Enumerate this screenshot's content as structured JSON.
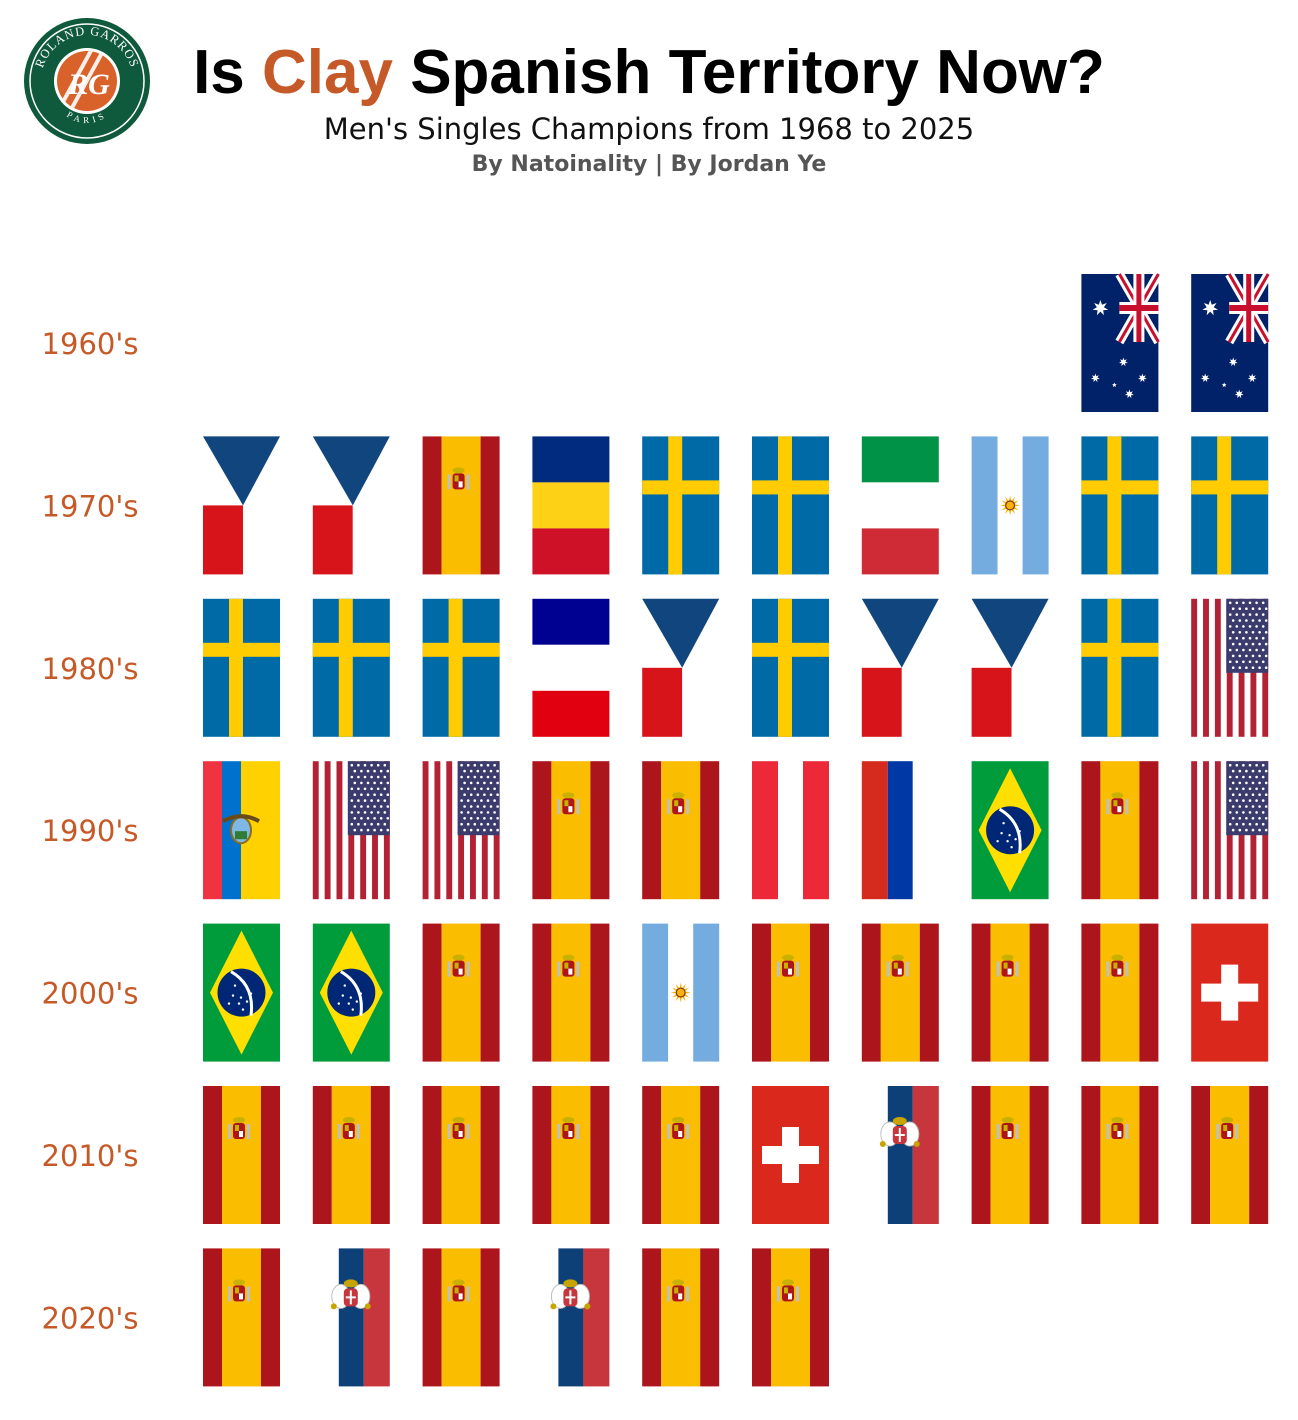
{
  "header": {
    "title_prefix": "Is ",
    "title_accent": "Clay",
    "title_suffix": " Spanish Territory Now?",
    "subtitle": "Men's Singles Champions from 1968 to 2025",
    "byline": "By Natoinality | By Jordan Ye",
    "accent_color": "#c55a28"
  },
  "logo": {
    "icon": "roland-garros-logo",
    "top_text": "ROLAND GARROS",
    "bottom_text": "PARIS",
    "monogram": "RG",
    "ring_color": "#0f5a3c",
    "center_color": "#d9622b"
  },
  "chart_data": {
    "type": "table",
    "title": "Is Clay Spanish Territory Now?",
    "subtitle": "Men's Singles Champions from 1968 to 2025",
    "years_per_row": 10,
    "rows": [
      {
        "decade": "1960's",
        "flags": [
          "australia",
          "australia"
        ]
      },
      {
        "decade": "1970's",
        "flags": [
          "czechia",
          "czechia",
          "spain",
          "romania",
          "sweden",
          "sweden",
          "italy",
          "argentina",
          "sweden",
          "sweden"
        ]
      },
      {
        "decade": "1980's",
        "flags": [
          "sweden",
          "sweden",
          "sweden",
          "france",
          "czechia",
          "sweden",
          "czechia",
          "czechia",
          "sweden",
          "usa"
        ]
      },
      {
        "decade": "1990's",
        "flags": [
          "ecuador",
          "usa",
          "usa",
          "spain",
          "spain",
          "austria",
          "russia",
          "brazil",
          "spain",
          "usa"
        ]
      },
      {
        "decade": "2000's",
        "flags": [
          "brazil",
          "brazil",
          "spain",
          "spain",
          "argentina",
          "spain",
          "spain",
          "spain",
          "spain",
          "switzerland"
        ]
      },
      {
        "decade": "2010's",
        "flags": [
          "spain",
          "spain",
          "spain",
          "spain",
          "spain",
          "switzerland",
          "serbia",
          "spain",
          "spain",
          "spain"
        ]
      },
      {
        "decade": "2020's",
        "flags": [
          "spain",
          "serbia",
          "spain",
          "serbia",
          "spain",
          "spain"
        ]
      }
    ]
  }
}
